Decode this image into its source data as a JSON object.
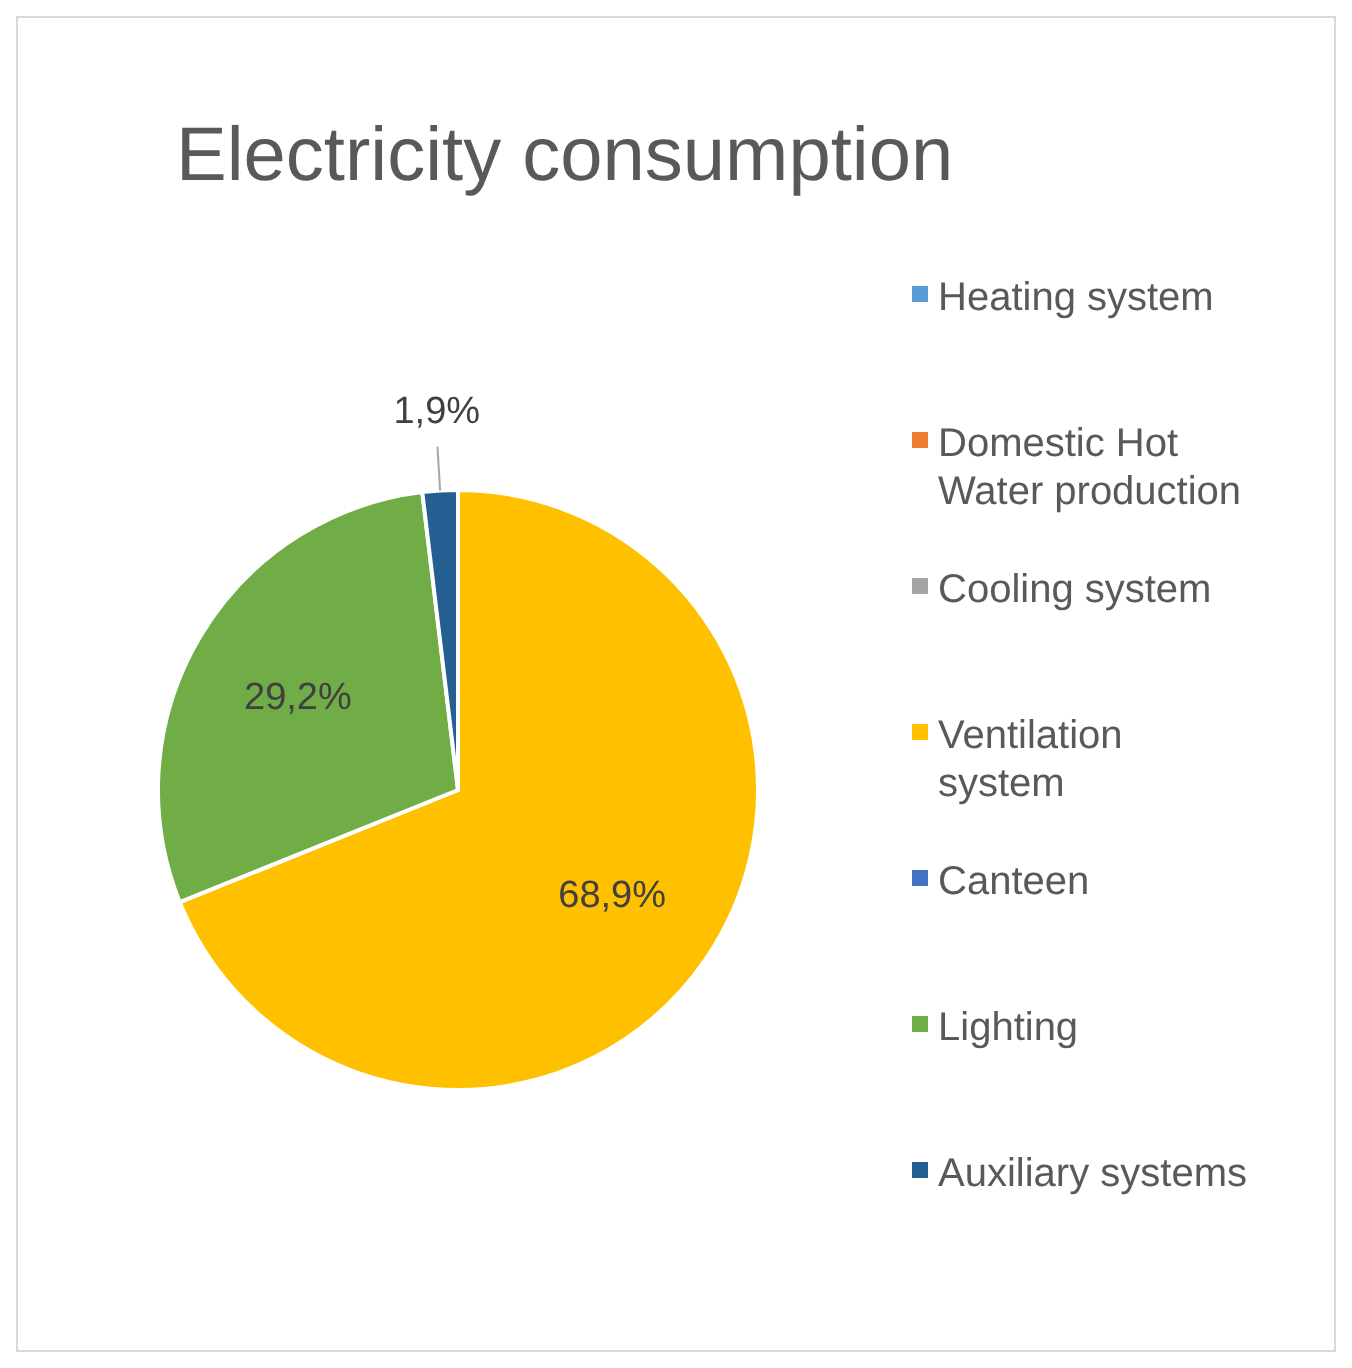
{
  "chart_data": {
    "type": "pie",
    "title": "Electricity consumption",
    "categories": [
      "Heating system",
      "Domestic Hot Water production",
      "Cooling system",
      "Ventilation system",
      "Canteen",
      "Lighting",
      "Auxiliary systems"
    ],
    "values": [
      0,
      0,
      0,
      68.9,
      0,
      29.2,
      1.9
    ],
    "value_labels": [
      null,
      null,
      null,
      "68,9%",
      null,
      "29,2%",
      "1,9%"
    ],
    "colors": [
      "#5b9bd5",
      "#ed7d31",
      "#a5a5a5",
      "#ffc000",
      "#4472c4",
      "#70ad47",
      "#255e91"
    ],
    "legend": "right"
  }
}
